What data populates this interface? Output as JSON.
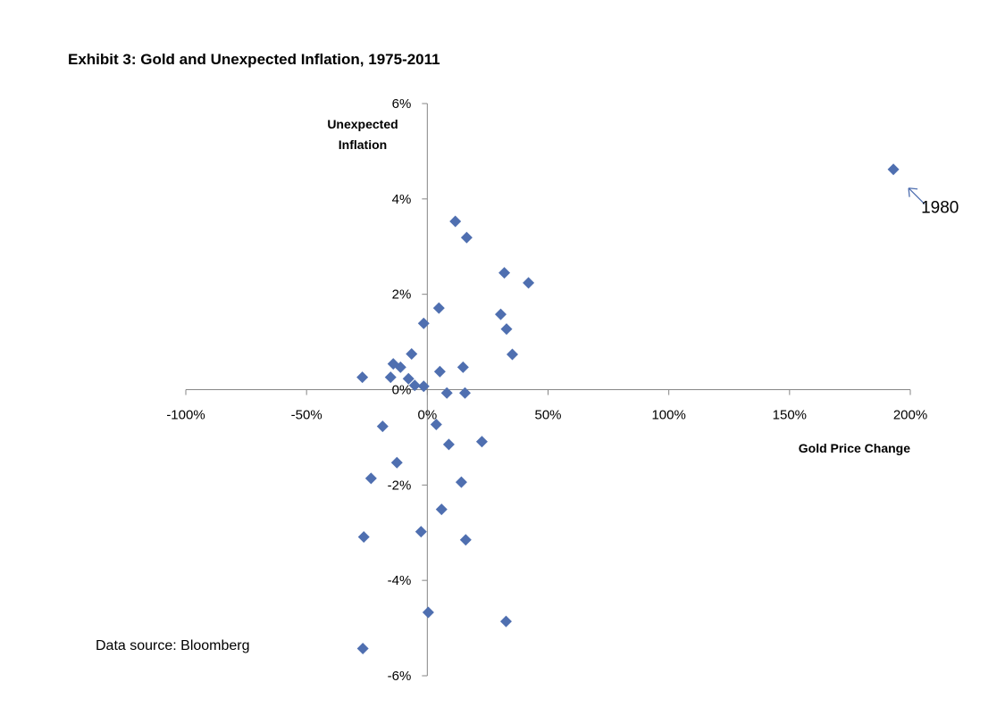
{
  "chart_data": {
    "type": "scatter",
    "title": "Exhibit 3: Gold and Unexpected Inflation, 1975-2011",
    "xlabel": "Gold Price Change",
    "ylabel_lines": [
      "Unexpected",
      "Inflation"
    ],
    "xlim": [
      -100,
      200
    ],
    "ylim": [
      -6,
      6
    ],
    "x_ticks": [
      -100,
      -50,
      0,
      50,
      100,
      150,
      200
    ],
    "y_ticks": [
      -6,
      -4,
      -2,
      0,
      2,
      4,
      6
    ],
    "x_tick_labels": [
      "-100%",
      "-50%",
      "0%",
      "50%",
      "100%",
      "150%",
      "200%"
    ],
    "y_tick_labels": [
      "-6%",
      "-4%",
      "-2%",
      "0%",
      "2%",
      "4%",
      "6%"
    ],
    "marker_color": "#4F6FB0",
    "grid": false,
    "legend": "none",
    "annotation": {
      "text": "1980",
      "x": 193,
      "y": 4.62
    },
    "points": [
      {
        "x": 193,
        "y": 4.62
      },
      {
        "x": 11.6,
        "y": 3.53
      },
      {
        "x": 16.3,
        "y": 3.19
      },
      {
        "x": 31.9,
        "y": 2.45
      },
      {
        "x": 41.9,
        "y": 2.24
      },
      {
        "x": 4.8,
        "y": 1.71
      },
      {
        "x": 30.4,
        "y": 1.58
      },
      {
        "x": -1.5,
        "y": 1.39
      },
      {
        "x": 32.8,
        "y": 1.27
      },
      {
        "x": -6.5,
        "y": 0.75
      },
      {
        "x": 35.2,
        "y": 0.74
      },
      {
        "x": -14.1,
        "y": 0.54
      },
      {
        "x": -11.1,
        "y": 0.47
      },
      {
        "x": 14.8,
        "y": 0.47
      },
      {
        "x": 5.2,
        "y": 0.38
      },
      {
        "x": -26.9,
        "y": 0.26
      },
      {
        "x": -15.2,
        "y": 0.26
      },
      {
        "x": -7.8,
        "y": 0.23
      },
      {
        "x": -5.2,
        "y": 0.09
      },
      {
        "x": -1.5,
        "y": 0.07
      },
      {
        "x": 8.1,
        "y": -0.07
      },
      {
        "x": 15.6,
        "y": -0.07
      },
      {
        "x": 3.7,
        "y": -0.73
      },
      {
        "x": -18.5,
        "y": -0.77
      },
      {
        "x": 22.6,
        "y": -1.09
      },
      {
        "x": 8.9,
        "y": -1.15
      },
      {
        "x": -12.6,
        "y": -1.53
      },
      {
        "x": -23.3,
        "y": -1.86
      },
      {
        "x": 14.1,
        "y": -1.94
      },
      {
        "x": 5.9,
        "y": -2.51
      },
      {
        "x": -2.6,
        "y": -2.98
      },
      {
        "x": -26.3,
        "y": -3.09
      },
      {
        "x": 15.9,
        "y": -3.15
      },
      {
        "x": 0.4,
        "y": -4.67
      },
      {
        "x": 32.6,
        "y": -4.86
      },
      {
        "x": -26.7,
        "y": -5.43
      }
    ]
  },
  "footer": {
    "source": "Data source: Bloomberg"
  }
}
